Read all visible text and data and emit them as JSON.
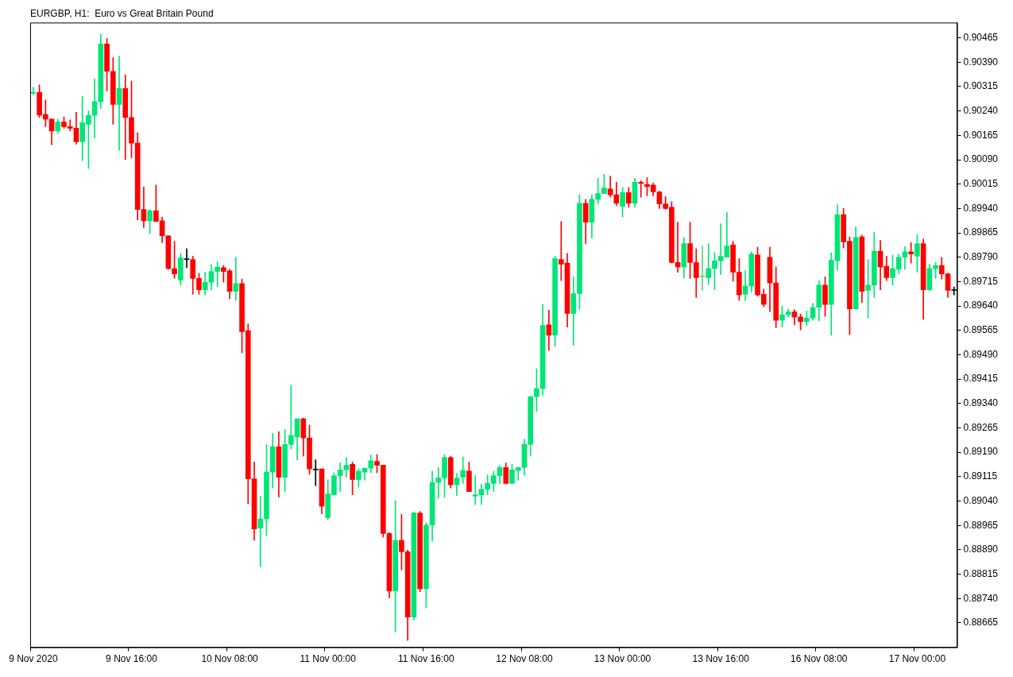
{
  "chart_data": {
    "type": "candlestick",
    "title": "EURGBP, H1:  Euro vs Great Britain Pound",
    "categories": [
      "9 Nov 2020",
      null,
      null,
      null,
      null,
      null,
      null,
      null,
      null,
      null,
      null,
      null,
      null,
      null,
      null,
      null,
      "9 Nov 16:00",
      null,
      null,
      null,
      null,
      null,
      null,
      null,
      null,
      null,
      null,
      null,
      null,
      null,
      null,
      null,
      "10 Nov 08:00",
      null,
      null,
      null,
      null,
      null,
      null,
      null,
      null,
      null,
      null,
      null,
      null,
      null,
      null,
      null,
      "11 Nov 00:00",
      null,
      null,
      null,
      null,
      null,
      null,
      null,
      null,
      null,
      null,
      null,
      null,
      null,
      null,
      null,
      "11 Nov 16:00",
      null,
      null,
      null,
      null,
      null,
      null,
      null,
      null,
      null,
      null,
      null,
      null,
      null,
      null,
      null,
      "12 Nov 08:00",
      null,
      null,
      null,
      null,
      null,
      null,
      null,
      null,
      null,
      null,
      null,
      null,
      null,
      null,
      null,
      "13 Nov 00:00",
      null,
      null,
      null,
      null,
      null,
      null,
      null,
      null,
      null,
      null,
      null,
      null,
      null,
      null,
      null,
      "13 Nov 16:00",
      null,
      null,
      null,
      null,
      null,
      null,
      null,
      null,
      null,
      null,
      null,
      null,
      null,
      null,
      null,
      "16 Nov 08:00",
      null,
      null,
      null,
      null,
      null,
      null,
      null,
      null,
      null,
      null,
      null,
      null,
      null,
      null,
      null,
      "17 Nov 00:00",
      null,
      null,
      null,
      null,
      null,
      null
    ],
    "ohlc": [
      [
        0.90295,
        0.90313,
        0.9029,
        0.90297
      ],
      [
        0.90297,
        0.9032,
        0.9022,
        0.90227
      ],
      [
        0.90229,
        0.90274,
        0.90192,
        0.90215
      ],
      [
        0.90215,
        0.90215,
        0.90136,
        0.90178
      ],
      [
        0.90178,
        0.90215,
        0.90171,
        0.90206
      ],
      [
        0.90206,
        0.90222,
        0.90187,
        0.90192
      ],
      [
        0.90192,
        0.90213,
        0.90178,
        0.90187
      ],
      [
        0.90187,
        0.90236,
        0.90138,
        0.90145
      ],
      [
        0.90145,
        0.90285,
        0.90087,
        0.90204
      ],
      [
        0.90199,
        0.90241,
        0.90063,
        0.90227
      ],
      [
        0.90227,
        0.90339,
        0.90157,
        0.90269
      ],
      [
        0.90269,
        0.90477,
        0.90248,
        0.90446
      ],
      [
        0.90446,
        0.90463,
        0.90302,
        0.90362
      ],
      [
        0.90362,
        0.90404,
        0.90199,
        0.9026
      ],
      [
        0.9026,
        0.90409,
        0.90119,
        0.90309
      ],
      [
        0.90309,
        0.90351,
        0.90091,
        0.9022
      ],
      [
        0.9022,
        0.90332,
        0.90096,
        0.90141
      ],
      [
        0.90141,
        0.90173,
        0.89905,
        0.89937
      ],
      [
        0.89937,
        0.90007,
        0.89881,
        0.89902
      ],
      [
        0.89902,
        0.89937,
        0.89863,
        0.89933
      ],
      [
        0.89933,
        0.90012,
        0.899,
        0.899
      ],
      [
        0.89902,
        0.89914,
        0.89835,
        0.89856
      ],
      [
        0.89856,
        0.89856,
        0.89753,
        0.89755
      ],
      [
        0.89755,
        0.89839,
        0.89725,
        0.89739
      ],
      [
        0.8972,
        0.89802,
        0.89704,
        0.89788
      ],
      [
        0.89783,
        0.89816,
        0.89758,
        0.89783
      ],
      [
        0.89783,
        0.89793,
        0.89676,
        0.89725
      ],
      [
        0.89725,
        0.89741,
        0.89676,
        0.8969
      ],
      [
        0.8969,
        0.89744,
        0.89674,
        0.89713
      ],
      [
        0.89713,
        0.89767,
        0.8969,
        0.89746
      ],
      [
        0.89746,
        0.89776,
        0.89699,
        0.8976
      ],
      [
        0.89758,
        0.89765,
        0.89713,
        0.89746
      ],
      [
        0.89748,
        0.89753,
        0.89662,
        0.89685
      ],
      [
        0.89685,
        0.8979,
        0.89657,
        0.89709
      ],
      [
        0.89709,
        0.89723,
        0.89496,
        0.89561
      ],
      [
        0.89564,
        0.89585,
        0.89031,
        0.89108
      ],
      [
        0.89108,
        0.8916,
        0.88919,
        0.88954
      ],
      [
        0.88957,
        0.89055,
        0.88838,
        0.88985
      ],
      [
        0.88985,
        0.89214,
        0.88933,
        0.89129
      ],
      [
        0.89129,
        0.89249,
        0.8908,
        0.89207
      ],
      [
        0.89207,
        0.89253,
        0.89052,
        0.89113
      ],
      [
        0.89113,
        0.8926,
        0.89069,
        0.89214
      ],
      [
        0.89214,
        0.89396,
        0.892,
        0.89242
      ],
      [
        0.89237,
        0.89293,
        0.89167,
        0.89293
      ],
      [
        0.89293,
        0.89295,
        0.89178,
        0.89234
      ],
      [
        0.89234,
        0.89274,
        0.89122,
        0.89139
      ],
      [
        0.89136,
        0.89167,
        0.89087,
        0.89136
      ],
      [
        0.89139,
        0.89139,
        0.89001,
        0.89024
      ],
      [
        0.88989,
        0.89106,
        0.88982,
        0.89062
      ],
      [
        0.89059,
        0.89127,
        0.89059,
        0.89118
      ],
      [
        0.89118,
        0.89157,
        0.89069,
        0.89136
      ],
      [
        0.89136,
        0.89174,
        0.89113,
        0.8915
      ],
      [
        0.89153,
        0.8916,
        0.89059,
        0.89106
      ],
      [
        0.89106,
        0.89139,
        0.89083,
        0.89132
      ],
      [
        0.89129,
        0.89141,
        0.89104,
        0.89141
      ],
      [
        0.89141,
        0.89181,
        0.89127,
        0.89164
      ],
      [
        0.89162,
        0.89183,
        0.89127,
        0.8915
      ],
      [
        0.8915,
        0.8915,
        0.88929,
        0.8894
      ],
      [
        0.8894,
        0.88943,
        0.88742,
        0.88763
      ],
      [
        0.88763,
        0.89041,
        0.88637,
        0.88919
      ],
      [
        0.88919,
        0.88999,
        0.88828,
        0.88884
      ],
      [
        0.88884,
        0.88889,
        0.88611,
        0.88683
      ],
      [
        0.88683,
        0.89006,
        0.88674,
        0.89003
      ],
      [
        0.89003,
        0.89008,
        0.88761,
        0.8877
      ],
      [
        0.8877,
        0.88973,
        0.88711,
        0.88966
      ],
      [
        0.88966,
        0.89132,
        0.88917,
        0.89097
      ],
      [
        0.89097,
        0.89143,
        0.89048,
        0.89111
      ],
      [
        0.89111,
        0.89183,
        0.89052,
        0.89174
      ],
      [
        0.89174,
        0.89178,
        0.8908,
        0.8909
      ],
      [
        0.8909,
        0.89125,
        0.89057,
        0.89111
      ],
      [
        0.89113,
        0.89176,
        0.89094,
        0.89134
      ],
      [
        0.89132,
        0.8916,
        0.89069,
        0.89069
      ],
      [
        0.89055,
        0.89118,
        0.89029,
        0.89059
      ],
      [
        0.89059,
        0.89092,
        0.89029,
        0.89076
      ],
      [
        0.89076,
        0.8912,
        0.89059,
        0.89094
      ],
      [
        0.89094,
        0.89132,
        0.89069,
        0.89118
      ],
      [
        0.89118,
        0.8915,
        0.89094,
        0.89143
      ],
      [
        0.89143,
        0.89157,
        0.89092,
        0.89094
      ],
      [
        0.89094,
        0.89153,
        0.89094,
        0.89136
      ],
      [
        0.89134,
        0.89143,
        0.89104,
        0.89143
      ],
      [
        0.89143,
        0.8923,
        0.8912,
        0.89214
      ],
      [
        0.89214,
        0.89363,
        0.89178,
        0.89361
      ],
      [
        0.89361,
        0.89447,
        0.89316,
        0.89386
      ],
      [
        0.89386,
        0.89645,
        0.89365,
        0.8958
      ],
      [
        0.89582,
        0.89627,
        0.89503,
        0.8955
      ],
      [
        0.8955,
        0.89793,
        0.89515,
        0.89786
      ],
      [
        0.89783,
        0.899,
        0.89718,
        0.89769
      ],
      [
        0.89772,
        0.89802,
        0.89575,
        0.89617
      ],
      [
        0.89617,
        0.8973,
        0.89519,
        0.89678
      ],
      [
        0.89678,
        0.89982,
        0.89629,
        0.89956
      ],
      [
        0.89956,
        0.89968,
        0.89832,
        0.89898
      ],
      [
        0.89898,
        0.89982,
        0.89849,
        0.89968
      ],
      [
        0.89968,
        0.90033,
        0.89954,
        0.89986
      ],
      [
        0.89986,
        0.90045,
        0.89986,
        0.90003
      ],
      [
        0.9,
        0.9004,
        0.89975,
        0.89982
      ],
      [
        0.89982,
        0.90021,
        0.89949,
        0.89956
      ],
      [
        0.89947,
        0.90005,
        0.89914,
        0.89989
      ],
      [
        0.89989,
        0.90005,
        0.89944,
        0.89956
      ],
      [
        0.89956,
        0.90033,
        0.89944,
        0.90021
      ],
      [
        0.90021,
        0.90026,
        0.89975,
        0.90017
      ],
      [
        0.90014,
        0.90035,
        0.89979,
        0.90007
      ],
      [
        0.90012,
        0.90019,
        0.89979,
        0.89991
      ],
      [
        0.89991,
        0.89993,
        0.8994,
        0.89954
      ],
      [
        0.89954,
        0.89977,
        0.89937,
        0.8994
      ],
      [
        0.89944,
        0.89961,
        0.89772,
        0.89774
      ],
      [
        0.89774,
        0.89898,
        0.89744,
        0.8976
      ],
      [
        0.8976,
        0.89851,
        0.89727,
        0.89832
      ],
      [
        0.89832,
        0.89898,
        0.89725,
        0.89774
      ],
      [
        0.89774,
        0.89816,
        0.89666,
        0.89727
      ],
      [
        0.8973,
        0.89825,
        0.89688,
        0.8973
      ],
      [
        0.89727,
        0.89832,
        0.89706,
        0.89755
      ],
      [
        0.89755,
        0.89804,
        0.8969,
        0.89779
      ],
      [
        0.89779,
        0.89893,
        0.89737,
        0.89793
      ],
      [
        0.8979,
        0.89928,
        0.8979,
        0.89825
      ],
      [
        0.89828,
        0.89839,
        0.89716,
        0.89744
      ],
      [
        0.89744,
        0.89786,
        0.89657,
        0.89674
      ],
      [
        0.89676,
        0.89748,
        0.89657,
        0.89702
      ],
      [
        0.89702,
        0.89807,
        0.89683,
        0.898
      ],
      [
        0.89797,
        0.89821,
        0.89671,
        0.89674
      ],
      [
        0.89676,
        0.89692,
        0.89638,
        0.89645
      ],
      [
        0.8979,
        0.89821,
        0.89622,
        0.89711
      ],
      [
        0.89711,
        0.8976,
        0.89573,
        0.89596
      ],
      [
        0.89596,
        0.89641,
        0.89575,
        0.89613
      ],
      [
        0.89613,
        0.89631,
        0.89606,
        0.89622
      ],
      [
        0.89622,
        0.89629,
        0.89582,
        0.89606
      ],
      [
        0.89606,
        0.89615,
        0.89566,
        0.89592
      ],
      [
        0.89592,
        0.89624,
        0.8958,
        0.89603
      ],
      [
        0.89603,
        0.89648,
        0.89596,
        0.89636
      ],
      [
        0.89636,
        0.89718,
        0.89594,
        0.89704
      ],
      [
        0.89704,
        0.8973,
        0.89608,
        0.89645
      ],
      [
        0.89645,
        0.89804,
        0.8955,
        0.89781
      ],
      [
        0.89779,
        0.89951,
        0.89751,
        0.89921
      ],
      [
        0.89921,
        0.8994,
        0.89818,
        0.89837
      ],
      [
        0.89839,
        0.89853,
        0.89552,
        0.89631
      ],
      [
        0.89631,
        0.89884,
        0.89631,
        0.89851
      ],
      [
        0.89853,
        0.89858,
        0.8965,
        0.89685
      ],
      [
        0.89688,
        0.89783,
        0.89603,
        0.89704
      ],
      [
        0.89704,
        0.89867,
        0.89666,
        0.89809
      ],
      [
        0.89809,
        0.89842,
        0.8969,
        0.8976
      ],
      [
        0.89762,
        0.89793,
        0.89718,
        0.89727
      ],
      [
        0.89727,
        0.89797,
        0.89704,
        0.89755
      ],
      [
        0.89753,
        0.898,
        0.89739,
        0.8979
      ],
      [
        0.8979,
        0.89823,
        0.89753,
        0.89807
      ],
      [
        0.89807,
        0.89835,
        0.89772,
        0.898
      ],
      [
        0.89793,
        0.8986,
        0.89744,
        0.89832
      ],
      [
        0.89832,
        0.89846,
        0.89599,
        0.8969
      ],
      [
        0.8969,
        0.89769,
        0.89688,
        0.89755
      ],
      [
        0.89755,
        0.89774,
        0.89725,
        0.89765
      ],
      [
        0.89765,
        0.8979,
        0.89723,
        0.89739
      ],
      [
        0.89739,
        0.89741,
        0.89666,
        0.89688
      ],
      [
        0.89688,
        0.89699,
        0.89674,
        0.89688
      ]
    ],
    "colors": [
      "#00e676",
      "#ff0000",
      "#ff0000",
      "#ff0000",
      "#00e676",
      "#ff0000",
      "#ff0000",
      "#ff0000",
      "#00e676",
      "#00e676",
      "#00e676",
      "#00e676",
      "#ff0000",
      "#ff0000",
      "#00e676",
      "#ff0000",
      "#ff0000",
      "#ff0000",
      "#ff0000",
      "#00e676",
      "#ff0000",
      "#ff0000",
      "#ff0000",
      "#ff0000",
      "#00e676",
      "#000000",
      "#ff0000",
      "#ff0000",
      "#00e676",
      "#00e676",
      "#00e676",
      "#ff0000",
      "#ff0000",
      "#00e676",
      "#ff0000",
      "#ff0000",
      "#ff0000",
      "#00e676",
      "#00e676",
      "#00e676",
      "#ff0000",
      "#00e676",
      "#00e676",
      "#00e676",
      "#ff0000",
      "#ff0000",
      "#000000",
      "#ff0000",
      "#00e676",
      "#00e676",
      "#00e676",
      "#00e676",
      "#ff0000",
      "#00e676",
      "#00e676",
      "#00e676",
      "#ff0000",
      "#ff0000",
      "#ff0000",
      "#00e676",
      "#ff0000",
      "#ff0000",
      "#00e676",
      "#ff0000",
      "#00e676",
      "#00e676",
      "#00e676",
      "#00e676",
      "#ff0000",
      "#00e676",
      "#00e676",
      "#ff0000",
      "#00e676",
      "#00e676",
      "#00e676",
      "#00e676",
      "#00e676",
      "#ff0000",
      "#00e676",
      "#00e676",
      "#00e676",
      "#00e676",
      "#00e676",
      "#00e676",
      "#ff0000",
      "#00e676",
      "#ff0000",
      "#ff0000",
      "#00e676",
      "#00e676",
      "#ff0000",
      "#00e676",
      "#00e676",
      "#00e676",
      "#ff0000",
      "#ff0000",
      "#00e676",
      "#ff0000",
      "#00e676",
      "#ff0000",
      "#ff0000",
      "#ff0000",
      "#ff0000",
      "#ff0000",
      "#ff0000",
      "#ff0000",
      "#00e676",
      "#ff0000",
      "#ff0000",
      "#66cc88",
      "#00e676",
      "#00e676",
      "#00e676",
      "#00e676",
      "#ff0000",
      "#ff0000",
      "#00e676",
      "#00e676",
      "#ff0000",
      "#ff0000",
      "#ff0000",
      "#ff0000",
      "#00e676",
      "#00e676",
      "#ff0000",
      "#ff0000",
      "#00e676",
      "#00e676",
      "#00e676",
      "#ff0000",
      "#00e676",
      "#00e676",
      "#ff0000",
      "#ff0000",
      "#00e676",
      "#ff0000",
      "#00e676",
      "#00e676",
      "#ff0000",
      "#ff0000",
      "#00e676",
      "#00e676",
      "#00e676",
      "#ff0000",
      "#00e676",
      "#ff0000",
      "#00e676",
      "#00e676",
      "#ff0000",
      "#ff0000",
      "#000000"
    ],
    "ylim": [
      0.8859,
      0.90512
    ],
    "yticks": [
      0.90465,
      {
        "value": 0.9039,
        "label": "0.90390"
      },
      0.90315,
      {
        "value": 0.9024,
        "label": "0.90240"
      },
      0.90165,
      {
        "value": 0.9009,
        "label": "0.90090"
      },
      0.90015,
      {
        "value": 0.8994,
        "label": "0.89940"
      },
      0.89865,
      {
        "value": 0.8979,
        "label": "0.89790"
      },
      0.89715,
      {
        "value": 0.8964,
        "label": "0.89640"
      },
      0.89565,
      {
        "value": 0.8949,
        "label": "0.89490"
      },
      0.89415,
      {
        "value": 0.8934,
        "label": "0.89340"
      },
      0.89265,
      {
        "value": 0.8919,
        "label": "0.89190"
      },
      0.89115,
      {
        "value": 0.8904,
        "label": "0.89040"
      },
      0.88965,
      {
        "value": 0.8889,
        "label": "0.88890"
      },
      0.88815,
      {
        "value": 0.8874,
        "label": "0.88740"
      },
      0.88665
    ]
  }
}
